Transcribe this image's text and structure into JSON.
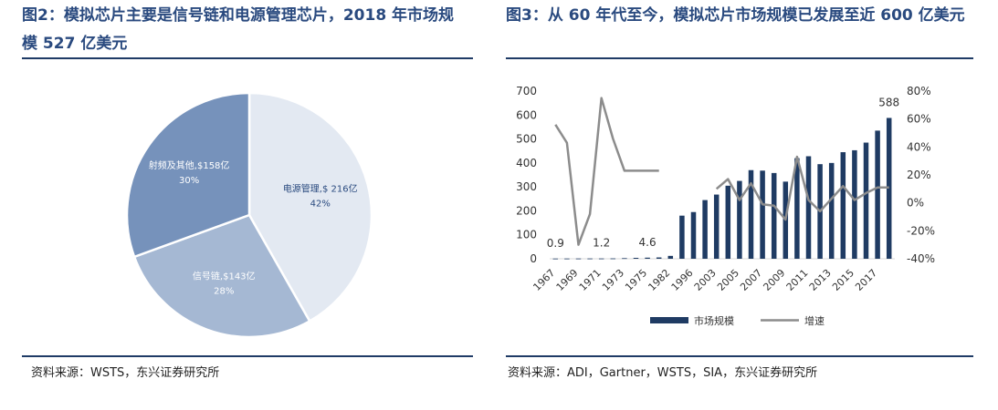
{
  "left": {
    "title": "图2：模拟芯片主要是信号链和电源管理芯片，2018 年市场规模 527 亿美元",
    "source": "资料来源：WSTS，东兴证券研究所"
  },
  "right": {
    "title": "图3：从 60 年代至今，模拟芯片市场规模已发展至近 600 亿美元",
    "source": "资料来源：ADI，Gartner，WSTS，SIA，东兴证券研究所"
  },
  "chart_data": [
    {
      "type": "pie",
      "slices": [
        {
          "label": "电源管理,$ 216亿",
          "value": 216,
          "percent": "42%",
          "color": "#e3e9f2"
        },
        {
          "label": "信号链,$143亿",
          "value": 143,
          "percent": "28%",
          "color": "#a5b8d3"
        },
        {
          "label": "射频及其他,$158亿",
          "value": 158,
          "percent": "30%",
          "color": "#7692bb"
        }
      ]
    },
    {
      "type": "bar",
      "x": [
        "1967",
        "1968",
        "1969",
        "1970",
        "1971",
        "1972",
        "1973",
        "1974",
        "1975",
        "1976",
        "1982",
        "1995",
        "1996",
        "1997",
        "2003",
        "2004",
        "2005",
        "2006",
        "2007",
        "2008",
        "2009",
        "2010",
        "2011",
        "2012",
        "2013",
        "2014",
        "2015",
        "2016",
        "2017",
        "2018"
      ],
      "x_tick_labels": [
        "1967",
        "1969",
        "1971",
        "1973",
        "1975",
        "1982",
        "1996",
        "2003",
        "2005",
        "2007",
        "2009",
        "2011",
        "2013",
        "2015",
        "2017"
      ],
      "series": [
        {
          "name": "市场规模",
          "kind": "bar",
          "axis": "left",
          "color": "#1f3b63",
          "values": [
            0.9,
            1,
            1.1,
            1.2,
            1.2,
            1.5,
            2.5,
            3.8,
            4.6,
            5.5,
            12,
            180,
            195,
            245,
            268,
            305,
            325,
            370,
            368,
            358,
            322,
            420,
            428,
            395,
            400,
            445,
            453,
            485,
            535,
            588
          ]
        },
        {
          "name": "增速",
          "kind": "line",
          "axis": "right",
          "color": "#8c8c8c",
          "segments": [
            {
              "x": [
                "1967",
                "1968",
                "1969",
                "1970",
                "1971",
                "1972",
                "1973",
                "1974",
                "1975",
                "1976"
              ],
              "values": [
                56,
                43,
                -30,
                -8,
                75,
                46,
                23,
                23,
                23,
                23
              ]
            },
            {
              "x": [
                "2003",
                "2004",
                "2005",
                "2006",
                "2007",
                "2008",
                "2009",
                "2010",
                "2011",
                "2012",
                "2013",
                "2014",
                "2015",
                "2016",
                "2017",
                "2018"
              ],
              "values": [
                10,
                17,
                2,
                14,
                -1,
                -2,
                -12,
                33,
                2,
                -6,
                3,
                12,
                2,
                7,
                11,
                11
              ]
            }
          ]
        }
      ],
      "data_labels": [
        {
          "x": "1967",
          "text": "0.9"
        },
        {
          "x": "1971",
          "text": "1.2"
        },
        {
          "x": "1975",
          "text": "4.6"
        },
        {
          "x": "2018",
          "text": "588"
        }
      ],
      "ylim_left": [
        0,
        700
      ],
      "yticks_left": [
        "0",
        "100",
        "200",
        "300",
        "400",
        "500",
        "600",
        "700"
      ],
      "ylim_right": [
        -40,
        80
      ],
      "yticks_right": [
        "-40%",
        "-20%",
        "0%",
        "20%",
        "40%",
        "60%",
        "80%"
      ],
      "legend": "bottom"
    }
  ]
}
